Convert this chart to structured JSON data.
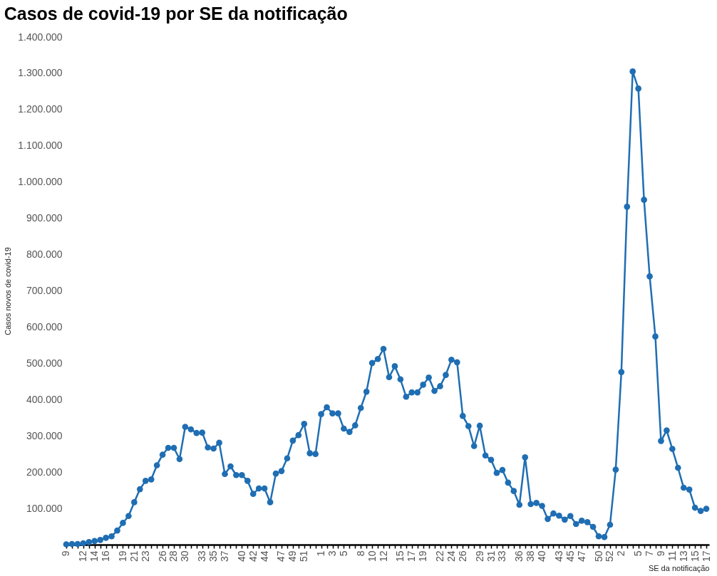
{
  "chart_data": {
    "type": "line",
    "title": "Casos de covid-19 por SE da notificação",
    "xlabel": "SE da notificação",
    "ylabel": "Casos novos de covid-19",
    "categories": [
      "9",
      null,
      null,
      "12",
      null,
      "14",
      null,
      "16",
      null,
      null,
      "19",
      null,
      "21",
      null,
      "23",
      null,
      null,
      "26",
      null,
      "28",
      null,
      "30",
      null,
      null,
      "33",
      null,
      "35",
      null,
      "37",
      null,
      null,
      "40",
      null,
      "42",
      null,
      "44",
      null,
      null,
      "47",
      null,
      "49",
      null,
      "51",
      null,
      null,
      "1",
      null,
      "3",
      null,
      "5",
      null,
      null,
      "8",
      null,
      "10",
      null,
      "12",
      null,
      null,
      "15",
      null,
      "17",
      null,
      "19",
      null,
      null,
      "22",
      null,
      "24",
      null,
      "26",
      null,
      null,
      "29",
      null,
      "31",
      null,
      "33",
      null,
      null,
      "36",
      null,
      "38",
      null,
      "40",
      null,
      null,
      "43",
      null,
      "45",
      null,
      "47",
      null,
      null,
      "50",
      null,
      "52",
      null,
      "2",
      null,
      null,
      "5",
      null,
      "7",
      null,
      "9",
      null,
      "11",
      null,
      "13",
      null,
      "15",
      null,
      "17"
    ],
    "values": [
      1000,
      2000,
      2000,
      4000,
      7000,
      10000,
      13000,
      19000,
      23000,
      39000,
      60000,
      79000,
      117000,
      153000,
      176000,
      180000,
      219000,
      248000,
      267000,
      267000,
      236000,
      325000,
      318000,
      308000,
      309000,
      268000,
      265000,
      281000,
      195000,
      216000,
      192000,
      192000,
      176000,
      140000,
      155000,
      155000,
      117000,
      196000,
      203000,
      238000,
      287000,
      302000,
      333000,
      252000,
      250000,
      360000,
      379000,
      362000,
      362000,
      320000,
      311000,
      329000,
      377000,
      422000,
      501000,
      512000,
      540000,
      462000,
      492000,
      456000,
      408000,
      420000,
      420000,
      441000,
      461000,
      424000,
      437000,
      468000,
      510000,
      503000,
      355000,
      327000,
      272000,
      328000,
      246000,
      234000,
      198000,
      206000,
      171000,
      148000,
      110000,
      241000,
      112000,
      115000,
      107000,
      71000,
      86000,
      80000,
      69000,
      79000,
      57000,
      66000,
      62000,
      49000,
      23000,
      21000,
      55000,
      207000,
      476000,
      932000,
      1305000,
      1258000,
      951000,
      740000,
      574000,
      286000,
      315000,
      264000,
      212000,
      157000,
      152000,
      102000,
      93000,
      99000
    ],
    "color": "#1f6eb3",
    "marker": "circle",
    "ylim": [
      0,
      1400000
    ],
    "yticks": [
      {
        "value": 100000,
        "label": "100.000"
      },
      {
        "value": 200000,
        "label": "200.000"
      },
      {
        "value": 300000,
        "label": "300.000"
      },
      {
        "value": 400000,
        "label": "400.000"
      },
      {
        "value": 500000,
        "label": "500.000"
      },
      {
        "value": 600000,
        "label": "600.000"
      },
      {
        "value": 700000,
        "label": "700.000"
      },
      {
        "value": 800000,
        "label": "800.000"
      },
      {
        "value": 900000,
        "label": "900.000"
      },
      {
        "value": 1000000,
        "label": "1.000.000"
      },
      {
        "value": 1100000,
        "label": "1.100.000"
      },
      {
        "value": 1200000,
        "label": "1.200.000"
      },
      {
        "value": 1300000,
        "label": "1.300.000"
      },
      {
        "value": 1400000,
        "label": "1.400.000"
      }
    ]
  }
}
